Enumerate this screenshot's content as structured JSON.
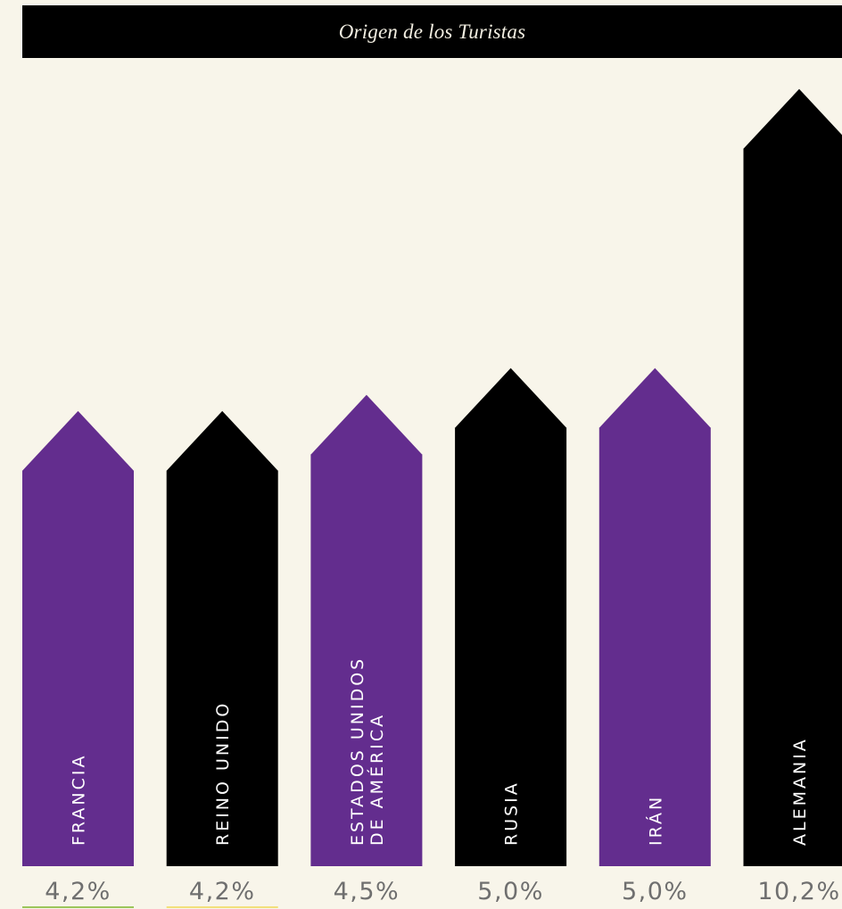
{
  "title": "Origen de los Turistas",
  "colors": {
    "background": "#f8f5ea",
    "purple": "#632d8e",
    "black": "#000000",
    "underline_green": "#9bc55a",
    "underline_yellow": "#f2df7a"
  },
  "chart_data": {
    "type": "bar",
    "title": "Origen de los Turistas",
    "unit": "%",
    "categories": [
      "FRANCIA",
      "REINO UNIDO",
      "ESTADOS UNIDOS DE AMÉRICA",
      "RUSIA",
      "IRÁN",
      "ALEMANIA"
    ],
    "category_lines": [
      [
        "FRANCIA"
      ],
      [
        "REINO UNIDO"
      ],
      [
        "ESTADOS UNIDOS",
        "DE AMÉRICA"
      ],
      [
        "RUSIA"
      ],
      [
        "IRÁN"
      ],
      [
        "ALEMANIA"
      ]
    ],
    "values": [
      4.2,
      4.2,
      4.5,
      5.0,
      5.0,
      10.2
    ],
    "value_labels": [
      "4,2%",
      "4,2%",
      "4,5%",
      "5,0%",
      "5,0%",
      "10,2%"
    ],
    "bar_colors": [
      "purple",
      "black",
      "purple",
      "black",
      "purple",
      "black"
    ],
    "underline_colors": [
      "underline_green",
      "underline_yellow",
      null,
      null,
      null,
      null
    ]
  }
}
